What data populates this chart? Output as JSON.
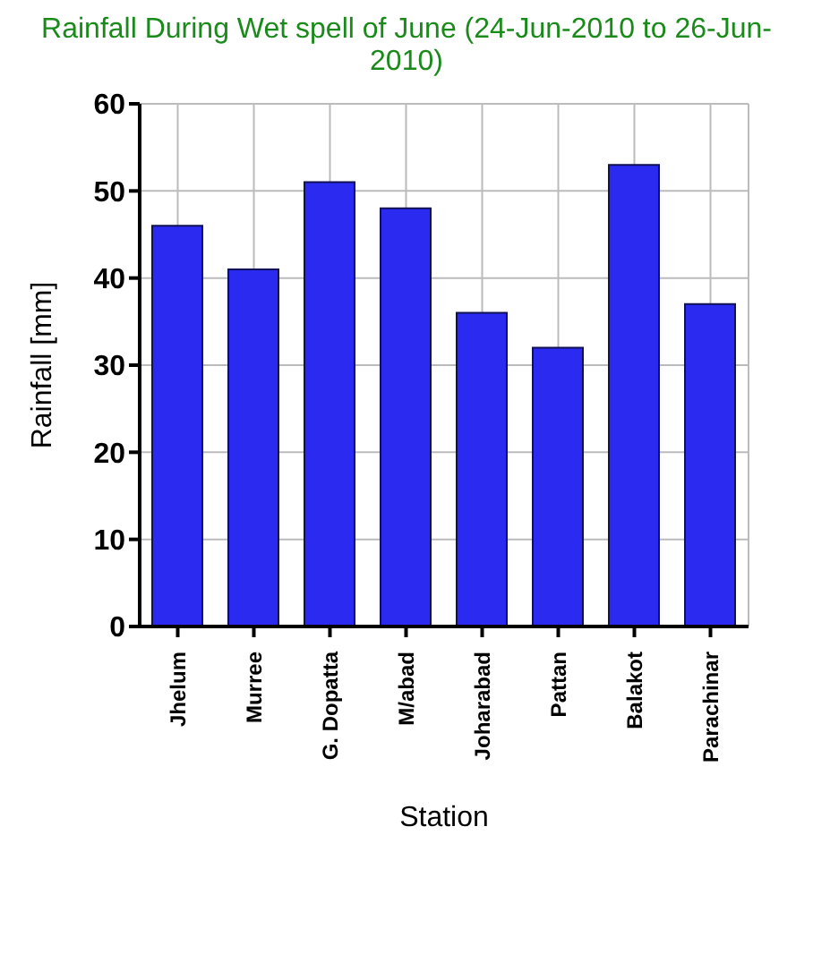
{
  "chart_data": {
    "type": "bar",
    "title": "Rainfall During Wet spell of June (24-Jun-2010 to 26-Jun-2010)",
    "xlabel": "Station",
    "ylabel": "Rainfall [mm]",
    "categories": [
      "Jhelum",
      "Murree",
      "G. Dopatta",
      "M/abad",
      "Joharabad",
      "Pattan",
      "Balakot",
      "Parachinar"
    ],
    "values": [
      46,
      41,
      51,
      48,
      36,
      32,
      53,
      37
    ],
    "color": "#2a2af0",
    "ylim": [
      0,
      60
    ],
    "yticks": [
      0,
      10,
      20,
      30,
      40,
      50,
      60
    ],
    "grid": true
  }
}
